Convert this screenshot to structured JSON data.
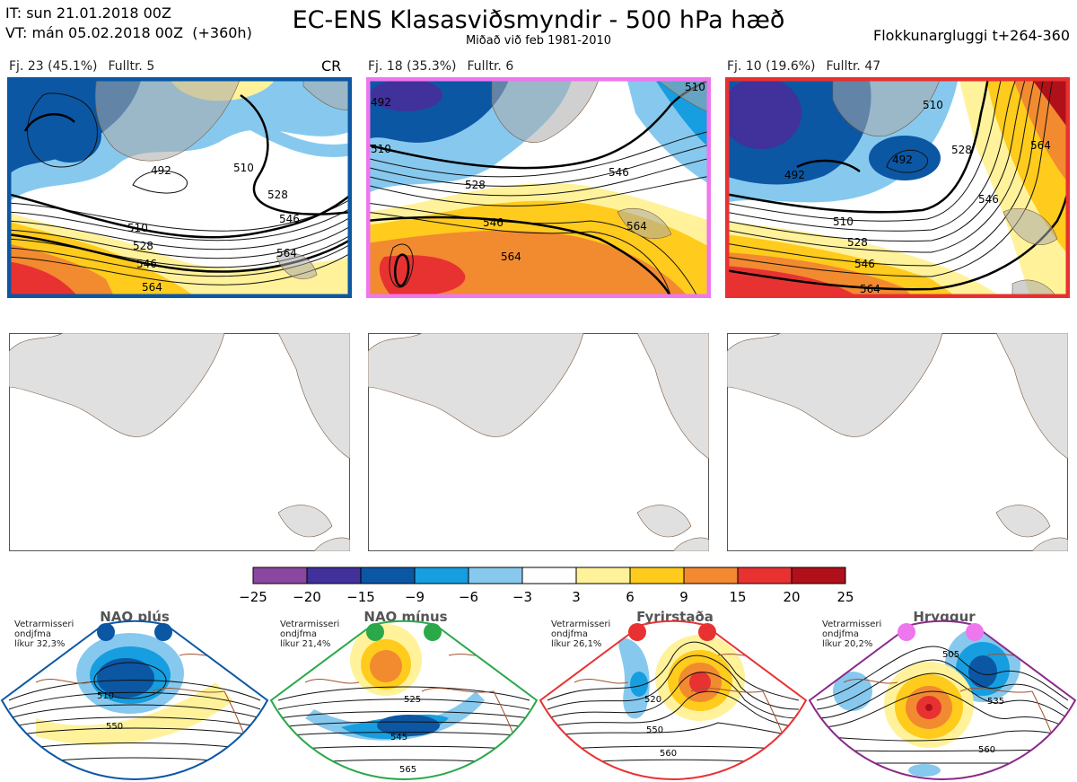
{
  "header": {
    "it_line": "IT: sun 21.01.2018 00Z",
    "vt_line": "VT: mán 05.02.2018 00Z  (+360h)",
    "title": "EC-ENS Klasasviðsmyndir - 500 hPa hæð",
    "subtitle": "Miðað við feb 1981-2010",
    "window": "Flokkunargluggi t+264-360"
  },
  "clusters": [
    {
      "fj": "Fj. 23 (45.1%)",
      "fulltr": "Fulltr. 5",
      "tag": "CR",
      "border": "#0b57a4",
      "labels": [
        "492",
        "510",
        "528",
        "546",
        "564",
        "510",
        "528",
        "546",
        "564"
      ]
    },
    {
      "fj": "Fj. 18 (35.3%)",
      "fulltr": "Fulltr. 6",
      "tag": "",
      "border": "#ee77ee",
      "labels": [
        "492",
        "510",
        "528",
        "546",
        "564",
        "546",
        "564",
        "510"
      ]
    },
    {
      "fj": "Fj. 10 (19.6%)",
      "fulltr": "Fulltr. 47",
      "tag": "",
      "border": "#e83030",
      "labels": [
        "492",
        "510",
        "528",
        "546",
        "564",
        "492",
        "510",
        "528",
        "546",
        "564"
      ]
    }
  ],
  "colorbar": {
    "ticks": [
      "−25",
      "−20",
      "−15",
      "−9",
      "−6",
      "−3",
      "3",
      "6",
      "9",
      "15",
      "20",
      "25"
    ],
    "colors": [
      "#8b47a0",
      "#41319a",
      "#0b57a4",
      "#169ee0",
      "#87c9ee",
      "#ffffff",
      "#fff29a",
      "#ffcb1c",
      "#f28a30",
      "#e83232",
      "#b0101a"
    ]
  },
  "regimes": [
    {
      "name": "NAO plús",
      "note": [
        "Vetrarmisseri",
        "ondjfma",
        "líkur 32,3%"
      ],
      "color": "#0b57a4",
      "dot": "#0b57a4",
      "labels": [
        "510",
        "550"
      ]
    },
    {
      "name": "NAO mínus",
      "note": [
        "Vetrarmisseri",
        "ondjfma",
        "líkur 21,4%"
      ],
      "color": "#2aa84a",
      "dot": "#2aa84a",
      "labels": [
        "525",
        "545",
        "565"
      ]
    },
    {
      "name": "Fyrirstaða",
      "note": [
        "Vetrarmisseri",
        "ondjfma",
        "líkur 26,1%"
      ],
      "color": "#e83232",
      "dot": "#e83232",
      "labels": [
        "520",
        "550",
        "560"
      ]
    },
    {
      "name": "Hryggur",
      "note": [
        "Vetrarmisseri",
        "ondjfma",
        "líkur 20,2%"
      ],
      "color": "#8a2a8a",
      "dot": "#ee77ee",
      "labels": [
        "505",
        "535",
        "560"
      ]
    }
  ]
}
